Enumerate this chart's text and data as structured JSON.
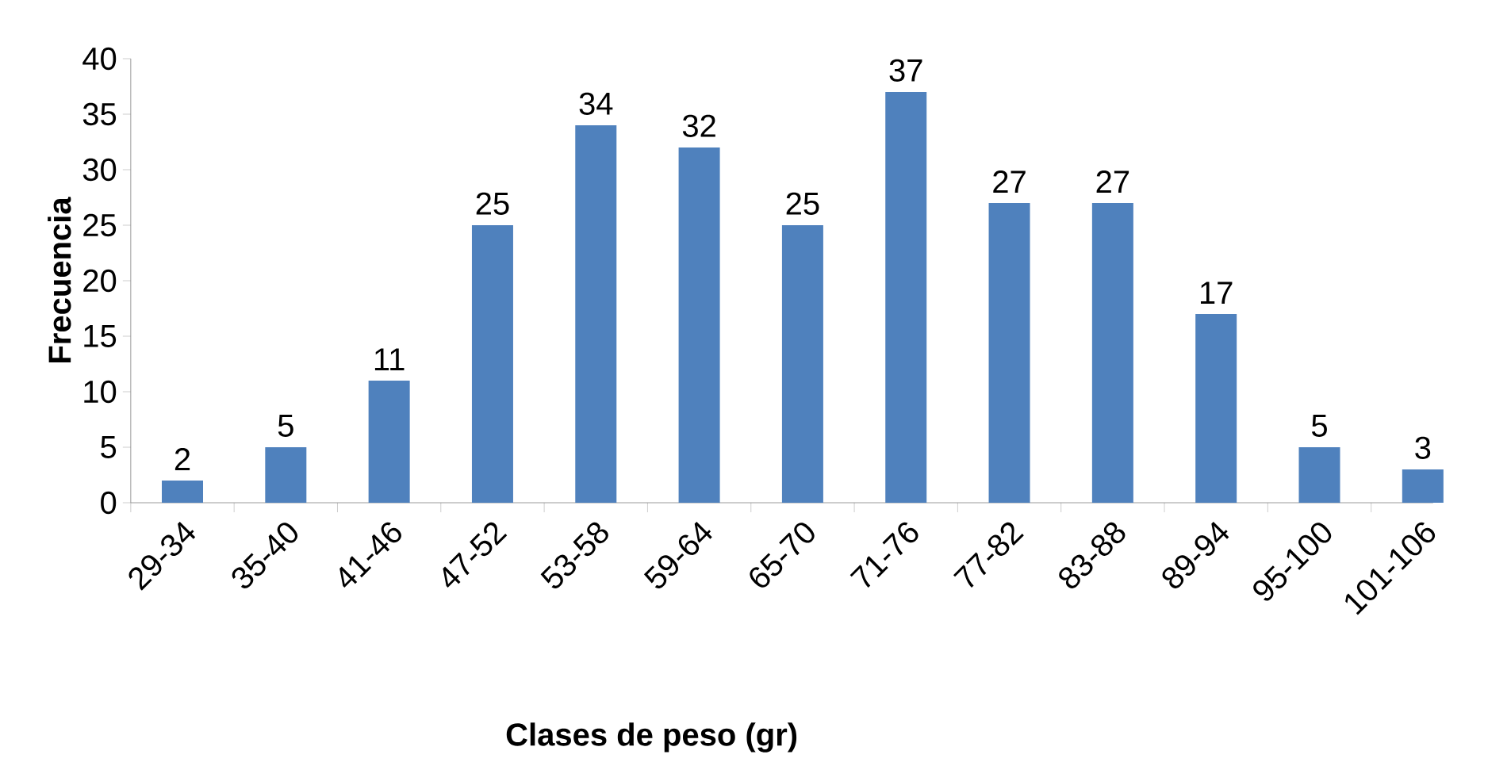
{
  "chart_data": {
    "type": "bar",
    "xlabel": "Clases de peso (gr)",
    "ylabel": "Frecuencia",
    "categories": [
      "29-34",
      "35-40",
      "41-46",
      "47-52",
      "53-58",
      "59-64",
      "65-70",
      "71-76",
      "77-82",
      "83-88",
      "89-94",
      "95-100",
      "101-106"
    ],
    "values": [
      2,
      5,
      11,
      25,
      34,
      32,
      25,
      37,
      27,
      27,
      17,
      5,
      3
    ],
    "color": "#4f81bd",
    "ylim": [
      0,
      40
    ],
    "yticks": [
      0,
      5,
      10,
      15,
      20,
      25,
      30,
      35,
      40
    ],
    "data_labels": true,
    "grid": false
  }
}
